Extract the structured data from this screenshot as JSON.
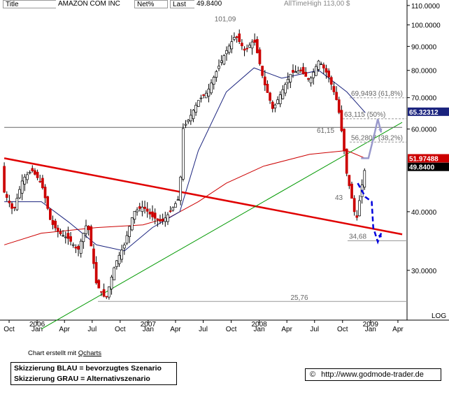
{
  "header": {
    "title_label": "Title",
    "title_value": "AMAZON COM INC",
    "netpct_label": "Net%",
    "last_label": "Last",
    "last_value": "49.8400",
    "alltimehigh": "AllTimeHigh   113,00 $"
  },
  "footer": {
    "credit_prefix": "Chart erstellt mit ",
    "credit_link": "Qcharts",
    "legend_line1": "Skizzierung BLAU = bevorzugtes Szenario",
    "legend_line2": "Skizzierung GRAU = Alternativszenario",
    "copyright": "©",
    "url": "http://www.godmode-trader.de"
  },
  "chart_data": {
    "type": "candlestick",
    "title": "AMAZON COM INC",
    "y_scale": "log",
    "y_label": "LOG",
    "ylim": [
      23.5,
      113
    ],
    "y_ticks": [
      "110.0000",
      "100.0000",
      "90.0000",
      "80.0000",
      "70.0000",
      "60.0000",
      "40.0000",
      "30.0000"
    ],
    "x_ticks": [
      "Oct",
      "Jan",
      "Apr",
      "Jul",
      "Oct",
      "Jan",
      "Apr",
      "Jul",
      "Oct",
      "Jan",
      "Apr",
      "Jul",
      "Oct",
      "Jan",
      "Apr"
    ],
    "x_tick_dates": [
      "2005-10",
      "2006-01",
      "2006-04",
      "2006-07",
      "2006-10",
      "2007-01",
      "2007-04",
      "2007-07",
      "2007-10",
      "2008-01",
      "2008-04",
      "2008-07",
      "2008-10",
      "2009-01",
      "2009-04"
    ],
    "year_labels": [
      {
        "label": "2006",
        "date": "2006-01"
      },
      {
        "label": "2007",
        "date": "2007-01"
      },
      {
        "label": "2008",
        "date": "2008-01"
      },
      {
        "label": "2009",
        "date": "2009-01"
      }
    ],
    "price_path": [
      [
        "2005-09",
        44
      ],
      [
        "2005-10",
        40
      ],
      [
        "2005-11",
        47
      ],
      [
        "2005-12",
        49
      ],
      [
        "2006-01",
        46
      ],
      [
        "2006-02",
        38
      ],
      [
        "2006-03",
        36
      ],
      [
        "2006-04",
        35
      ],
      [
        "2006-05",
        33
      ],
      [
        "2006-06",
        38
      ],
      [
        "2006-07",
        28
      ],
      [
        "2006-08",
        26
      ],
      [
        "2006-09",
        31
      ],
      [
        "2006-10",
        34
      ],
      [
        "2006-11",
        40
      ],
      [
        "2006-12",
        41
      ],
      [
        "2007-01",
        39
      ],
      [
        "2007-02",
        38
      ],
      [
        "2007-03",
        40
      ],
      [
        "2007-04",
        43
      ],
      [
        "2007-04-25",
        60
      ],
      [
        "2007-05",
        63
      ],
      [
        "2007-06",
        69
      ],
      [
        "2007-07",
        72
      ],
      [
        "2007-08",
        80
      ],
      [
        "2007-09",
        88
      ],
      [
        "2007-10",
        95
      ],
      [
        "2007-11",
        88
      ],
      [
        "2007-12",
        93
      ],
      [
        "2008-01",
        76
      ],
      [
        "2008-02",
        66
      ],
      [
        "2008-03",
        72
      ],
      [
        "2008-04",
        79
      ],
      [
        "2008-05",
        80
      ],
      [
        "2008-06",
        76
      ],
      [
        "2008-07",
        84
      ],
      [
        "2008-08",
        78
      ],
      [
        "2008-09",
        68
      ],
      [
        "2008-10",
        48
      ],
      [
        "2008-11",
        38
      ],
      [
        "2008-12",
        50
      ]
    ],
    "ma_200": [
      [
        "2005-09",
        34
      ],
      [
        "2006-01",
        36
      ],
      [
        "2006-07",
        37
      ],
      [
        "2006-12",
        37.5
      ],
      [
        "2007-03",
        39
      ],
      [
        "2007-06",
        42
      ],
      [
        "2007-09",
        46
      ],
      [
        "2008-01",
        50
      ],
      [
        "2008-06",
        53
      ],
      [
        "2008-10",
        54
      ],
      [
        "2008-12",
        52
      ]
    ],
    "ma_50": [
      [
        "2005-09",
        42
      ],
      [
        "2006-01",
        42
      ],
      [
        "2006-04",
        38
      ],
      [
        "2006-07",
        34
      ],
      [
        "2006-10",
        33
      ],
      [
        "2007-01",
        37
      ],
      [
        "2007-04",
        40
      ],
      [
        "2007-06",
        54
      ],
      [
        "2007-09",
        72
      ],
      [
        "2007-12",
        81
      ],
      [
        "2008-03",
        77
      ],
      [
        "2008-07",
        80
      ],
      [
        "2008-10",
        72
      ],
      [
        "2008-12",
        65
      ]
    ],
    "trendlines": [
      {
        "name": "red_resistance",
        "color": "#e00000",
        "from": [
          "2005-09",
          52
        ],
        "to": [
          "2009-04",
          35.8
        ]
      },
      {
        "name": "green_support",
        "color": "#009900",
        "from": [
          "2006-01",
          22.5
        ],
        "to": [
          "2009-04",
          62
        ]
      },
      {
        "name": "gray_horizontal",
        "color": "#666666",
        "from": [
          "2005-09",
          60.5
        ],
        "to": [
          "2009-04",
          60.5
        ]
      }
    ],
    "level_lines": [
      {
        "value": 101.09,
        "label": "101,09"
      },
      {
        "value": 69.9493,
        "label": "69,9493 (61,8%)"
      },
      {
        "value": 63.115,
        "label": "63,115 (50%)"
      },
      {
        "value": 61.15,
        "label": "61,15"
      },
      {
        "value": 56.2807,
        "label": "56,2807 (38,2%)"
      },
      {
        "value": 43,
        "label": "43"
      },
      {
        "value": 34.68,
        "label": "34,68"
      },
      {
        "value": 25.76,
        "label": "25,76"
      }
    ],
    "price_labels": [
      {
        "value": 65.32312,
        "label": "65.32312",
        "color": "#1a237e"
      },
      {
        "value": 51.97488,
        "label": "51.97488",
        "color": "#cc0000"
      },
      {
        "value": 49.84,
        "label": "49.8400",
        "color": "#000000"
      }
    ],
    "scenarios": [
      {
        "name": "BLAU",
        "color": "#0000dd",
        "dashed": true,
        "points": [
          [
            "2008-11-20",
            46
          ],
          [
            "2008-12-15",
            43
          ],
          [
            "2009-01-05",
            42
          ],
          [
            "2009-01-10",
            37
          ],
          [
            "2009-01-25",
            34.5
          ],
          [
            "2009-02-05",
            36
          ]
        ]
      },
      {
        "name": "GRAU",
        "color": "#9999cc",
        "dashed": false,
        "points": [
          [
            "2008-12-01",
            52
          ],
          [
            "2008-12-25",
            52
          ],
          [
            "2009-01-15",
            59
          ],
          [
            "2009-01-25",
            63
          ],
          [
            "2009-02-05",
            59
          ]
        ]
      }
    ]
  }
}
